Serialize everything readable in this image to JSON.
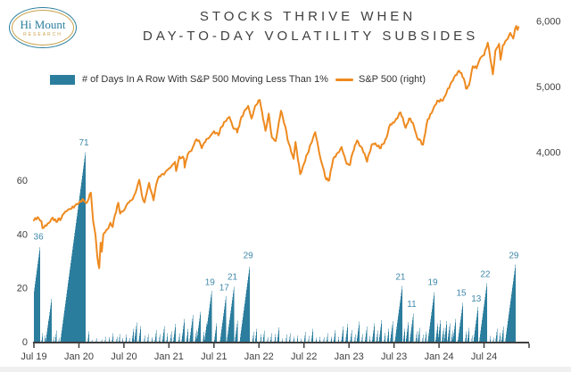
{
  "logo": {
    "name": "Hi Mount",
    "subtitle": "RESEARCH"
  },
  "title": {
    "line1": "STOCKS THRIVE WHEN",
    "line2": "DAY-TO-DAY VOLATILITY SUBSIDES"
  },
  "legend": {
    "bars": {
      "label": "# of Days In A Row With S&P 500 Moving Less Than 1%",
      "color": "#2b7d9d"
    },
    "line": {
      "label": "S&P 500 (right)",
      "color": "#ee8a1f"
    }
  },
  "colors": {
    "bar": "#2b7d9d",
    "line": "#ee8a1f",
    "bar_label": "#3f88a9",
    "axis_text": "#3f3f3f",
    "axis_line": "#3f3f3f"
  },
  "chart_data": {
    "type": "combo",
    "title": "STOCKS THRIVE WHEN DAY-TO-DAY VOLATILITY SUBSIDES",
    "grid": false,
    "legend_position": "top",
    "x_axis": {
      "tick_labels": [
        "Jul 19",
        "Jan 20",
        "Jul 20",
        "Jan 21",
        "Jul 21",
        "Jan 22",
        "Jul 22",
        "Jan 23",
        "Jul 23",
        "Jan 24",
        "Jul 24"
      ],
      "months_per_tick": 6,
      "start": "Jul 2019",
      "end": "Jan 2025"
    },
    "left_axis": {
      "ticks": [
        0,
        20,
        40,
        60
      ],
      "range": [
        0,
        75
      ],
      "series": "streak_days"
    },
    "right_axis": {
      "ticks": [
        "4,000",
        "5,000",
        "6,000"
      ],
      "values": [
        4000,
        5000,
        6000
      ],
      "range": [
        1100,
        6250
      ],
      "series": "sp500"
    },
    "labeled_peaks": [
      36,
      71,
      19,
      17,
      21,
      29,
      21,
      11,
      19,
      15,
      13,
      22,
      29
    ],
    "bar_series": {
      "name": "# of Days In A Row With S&P 500 Moving Less Than 1%",
      "color": "#2b7d9d",
      "unit": "trading days; each run = [months since Jul 2019 at streak end, peak days, labeled 1/0]",
      "runs": [
        [
          0.85,
          36,
          1
        ],
        [
          1.2,
          4,
          0
        ],
        [
          1.55,
          3,
          0
        ],
        [
          1.95,
          8,
          0
        ],
        [
          2.35,
          16,
          0
        ],
        [
          2.7,
          3,
          0
        ],
        [
          3.05,
          5,
          0
        ],
        [
          3.4,
          2,
          0
        ],
        [
          6.9,
          71,
          1
        ],
        [
          7.35,
          4,
          0
        ],
        [
          7.8,
          1,
          0
        ],
        [
          8.4,
          2,
          0
        ],
        [
          9.1,
          1,
          0
        ],
        [
          9.6,
          3,
          0
        ],
        [
          10.1,
          2,
          0
        ],
        [
          10.6,
          4,
          0
        ],
        [
          11.1,
          2,
          0
        ],
        [
          11.45,
          3,
          0
        ],
        [
          11.9,
          2,
          0
        ],
        [
          12.35,
          3,
          0
        ],
        [
          12.8,
          2,
          0
        ],
        [
          13.3,
          5,
          0
        ],
        [
          13.75,
          8,
          0
        ],
        [
          14.25,
          6,
          0
        ],
        [
          14.8,
          3,
          0
        ],
        [
          15.3,
          4,
          0
        ],
        [
          15.8,
          2,
          0
        ],
        [
          16.35,
          5,
          0
        ],
        [
          16.8,
          3,
          0
        ],
        [
          17.4,
          6,
          0
        ],
        [
          17.85,
          4,
          0
        ],
        [
          18.4,
          5,
          0
        ],
        [
          18.9,
          7,
          0
        ],
        [
          19.45,
          4,
          0
        ],
        [
          20.1,
          9,
          0
        ],
        [
          20.6,
          6,
          0
        ],
        [
          21.2,
          10,
          0
        ],
        [
          21.7,
          5,
          0
        ],
        [
          22.25,
          12,
          0
        ],
        [
          22.7,
          4,
          0
        ],
        [
          23.05,
          7,
          0
        ],
        [
          23.7,
          19,
          1
        ],
        [
          24.35,
          7,
          0
        ],
        [
          25.6,
          17,
          1
        ],
        [
          26.7,
          21,
          1
        ],
        [
          27.15,
          8,
          0
        ],
        [
          28.8,
          29,
          1
        ],
        [
          29.3,
          4,
          0
        ],
        [
          29.75,
          6,
          0
        ],
        [
          30.3,
          3,
          0
        ],
        [
          30.75,
          5,
          0
        ],
        [
          31.2,
          2,
          0
        ],
        [
          31.7,
          4,
          0
        ],
        [
          32.2,
          3,
          0
        ],
        [
          32.7,
          6,
          0
        ],
        [
          33.2,
          2,
          0
        ],
        [
          33.7,
          3,
          0
        ],
        [
          34.2,
          4,
          0
        ],
        [
          34.7,
          2,
          0
        ],
        [
          35.2,
          3,
          0
        ],
        [
          35.7,
          2,
          0
        ],
        [
          36.2,
          4,
          0
        ],
        [
          36.7,
          3,
          0
        ],
        [
          37.2,
          5,
          0
        ],
        [
          37.7,
          2,
          0
        ],
        [
          38.2,
          3,
          0
        ],
        [
          38.7,
          2,
          0
        ],
        [
          39.2,
          4,
          0
        ],
        [
          39.7,
          2,
          0
        ],
        [
          40.2,
          5,
          0
        ],
        [
          40.7,
          3,
          0
        ],
        [
          41.25,
          6,
          0
        ],
        [
          41.85,
          7,
          0
        ],
        [
          42.4,
          5,
          0
        ],
        [
          42.85,
          3,
          0
        ],
        [
          43.4,
          8,
          0
        ],
        [
          43.85,
          4,
          0
        ],
        [
          44.4,
          6,
          0
        ],
        [
          44.85,
          3,
          0
        ],
        [
          45.4,
          7,
          0
        ],
        [
          45.85,
          5,
          0
        ],
        [
          46.4,
          9,
          0
        ],
        [
          46.85,
          4,
          0
        ],
        [
          47.35,
          6,
          0
        ],
        [
          47.85,
          8,
          0
        ],
        [
          49.1,
          21,
          1
        ],
        [
          49.5,
          6,
          0
        ],
        [
          49.95,
          8,
          0
        ],
        [
          50.6,
          11,
          1
        ],
        [
          51.05,
          4,
          0
        ],
        [
          51.45,
          6,
          0
        ],
        [
          51.9,
          3,
          0
        ],
        [
          52.35,
          5,
          0
        ],
        [
          53.4,
          19,
          1
        ],
        [
          53.85,
          7,
          0
        ],
        [
          54.25,
          9,
          0
        ],
        [
          54.65,
          6,
          0
        ],
        [
          55.05,
          8,
          0
        ],
        [
          55.45,
          7,
          0
        ],
        [
          55.85,
          5,
          0
        ],
        [
          56.25,
          9,
          0
        ],
        [
          57.2,
          15,
          1
        ],
        [
          57.65,
          4,
          0
        ],
        [
          58.05,
          6,
          0
        ],
        [
          58.45,
          3,
          0
        ],
        [
          59.2,
          13,
          1
        ],
        [
          60.4,
          22,
          1
        ],
        [
          60.9,
          3,
          0
        ],
        [
          61.3,
          2,
          0
        ],
        [
          61.75,
          5,
          0
        ],
        [
          62.2,
          4,
          0
        ],
        [
          62.6,
          6,
          0
        ],
        [
          64.2,
          29,
          1
        ]
      ]
    },
    "line_series": {
      "name": "S&P 500 (right)",
      "color": "#ee8a1f",
      "unit": "index level; points = [months since Jul 2019, S&P 500 value]",
      "points": [
        [
          0,
          2964
        ],
        [
          0.5,
          3014
        ],
        [
          1.0,
          2953
        ],
        [
          1.15,
          2845
        ],
        [
          1.5,
          2889
        ],
        [
          2.0,
          2926
        ],
        [
          2.5,
          3007
        ],
        [
          3.0,
          2940
        ],
        [
          3.25,
          2990
        ],
        [
          3.5,
          2966
        ],
        [
          4.0,
          3067
        ],
        [
          4.5,
          3120
        ],
        [
          5.0,
          3141
        ],
        [
          5.5,
          3191
        ],
        [
          6.0,
          3231
        ],
        [
          6.5,
          3289
        ],
        [
          6.8,
          3243
        ],
        [
          7.0,
          3226
        ],
        [
          7.6,
          3386
        ],
        [
          7.9,
          2954
        ],
        [
          8.2,
          2746
        ],
        [
          8.45,
          2409
        ],
        [
          8.7,
          2237
        ],
        [
          8.9,
          2626
        ],
        [
          9.05,
          2488
        ],
        [
          9.25,
          2750
        ],
        [
          9.5,
          2783
        ],
        [
          9.8,
          2831
        ],
        [
          10.2,
          2930
        ],
        [
          10.5,
          2864
        ],
        [
          10.8,
          3044
        ],
        [
          11.25,
          3232
        ],
        [
          11.5,
          3067
        ],
        [
          11.8,
          3098
        ],
        [
          12.0,
          3116
        ],
        [
          12.3,
          3185
        ],
        [
          12.5,
          3227
        ],
        [
          13.0,
          3271
        ],
        [
          13.5,
          3373
        ],
        [
          14.05,
          3581
        ],
        [
          14.4,
          3340
        ],
        [
          14.75,
          3237
        ],
        [
          15.0,
          3363
        ],
        [
          15.35,
          3534
        ],
        [
          15.65,
          3400
        ],
        [
          15.95,
          3270
        ],
        [
          16.3,
          3510
        ],
        [
          16.5,
          3585
        ],
        [
          17.0,
          3662
        ],
        [
          17.5,
          3695
        ],
        [
          18.0,
          3756
        ],
        [
          18.4,
          3798
        ],
        [
          18.8,
          3855
        ],
        [
          18.95,
          3714
        ],
        [
          19.4,
          3935
        ],
        [
          20.0,
          3902
        ],
        [
          20.1,
          3768
        ],
        [
          20.5,
          3969
        ],
        [
          21.0,
          4020
        ],
        [
          21.5,
          4170
        ],
        [
          22.0,
          4181
        ],
        [
          22.37,
          4063
        ],
        [
          23.0,
          4202
        ],
        [
          23.5,
          4246
        ],
        [
          24.0,
          4320
        ],
        [
          24.6,
          4258
        ],
        [
          25.0,
          4387
        ],
        [
          25.5,
          4468
        ],
        [
          26.05,
          4537
        ],
        [
          26.63,
          4358
        ],
        [
          27.0,
          4357
        ],
        [
          27.1,
          4300
        ],
        [
          27.5,
          4471
        ],
        [
          28.0,
          4614
        ],
        [
          28.57,
          4705
        ],
        [
          29.0,
          4513
        ],
        [
          29.5,
          4710
        ],
        [
          30.1,
          4797
        ],
        [
          30.87,
          4326
        ],
        [
          31.3,
          4587
        ],
        [
          31.73,
          4225
        ],
        [
          32.23,
          4170
        ],
        [
          32.93,
          4632
        ],
        [
          33.5,
          4393
        ],
        [
          33.97,
          4132
        ],
        [
          34.6,
          3901
        ],
        [
          34.87,
          4158
        ],
        [
          35.5,
          3667
        ],
        [
          36.0,
          3825
        ],
        [
          36.93,
          4130
        ],
        [
          37.5,
          4305
        ],
        [
          38.2,
          3908
        ],
        [
          38.97,
          3586
        ],
        [
          39.37,
          3577
        ],
        [
          39.9,
          3901
        ],
        [
          40.5,
          3992
        ],
        [
          41.0,
          4080
        ],
        [
          41.7,
          3822
        ],
        [
          42.13,
          3808
        ],
        [
          42.5,
          3999
        ],
        [
          43.07,
          4180
        ],
        [
          44.07,
          3981
        ],
        [
          44.4,
          3856
        ],
        [
          45.0,
          4109
        ],
        [
          45.5,
          4138
        ],
        [
          46.1,
          4061
        ],
        [
          46.5,
          4124
        ],
        [
          47.0,
          4221
        ],
        [
          47.5,
          4426
        ],
        [
          48.0,
          4450
        ],
        [
          48.87,
          4607
        ],
        [
          49.57,
          4370
        ],
        [
          50.0,
          4516
        ],
        [
          50.5,
          4450
        ],
        [
          51.07,
          4229
        ],
        [
          51.87,
          4117
        ],
        [
          52.5,
          4503
        ],
        [
          53.0,
          4595
        ],
        [
          53.5,
          4719
        ],
        [
          53.9,
          4783
        ],
        [
          54.5,
          4784
        ],
        [
          55.0,
          4906
        ],
        [
          55.5,
          5030
        ],
        [
          56.0,
          5137
        ],
        [
          56.67,
          5242
        ],
        [
          57.3,
          5123
        ],
        [
          57.6,
          4967
        ],
        [
          58.0,
          5018
        ],
        [
          58.5,
          5308
        ],
        [
          59.0,
          5277
        ],
        [
          59.5,
          5432
        ],
        [
          60.0,
          5475
        ],
        [
          60.5,
          5667
        ],
        [
          61.17,
          5186
        ],
        [
          61.5,
          5543
        ],
        [
          62.0,
          5648
        ],
        [
          62.2,
          5408
        ],
        [
          62.5,
          5626
        ],
        [
          63.0,
          5709
        ],
        [
          63.5,
          5815
        ],
        [
          63.9,
          5730
        ],
        [
          64.15,
          5880
        ],
        [
          64.3,
          5920
        ],
        [
          64.45,
          5860
        ],
        [
          64.6,
          5905
        ]
      ]
    }
  }
}
